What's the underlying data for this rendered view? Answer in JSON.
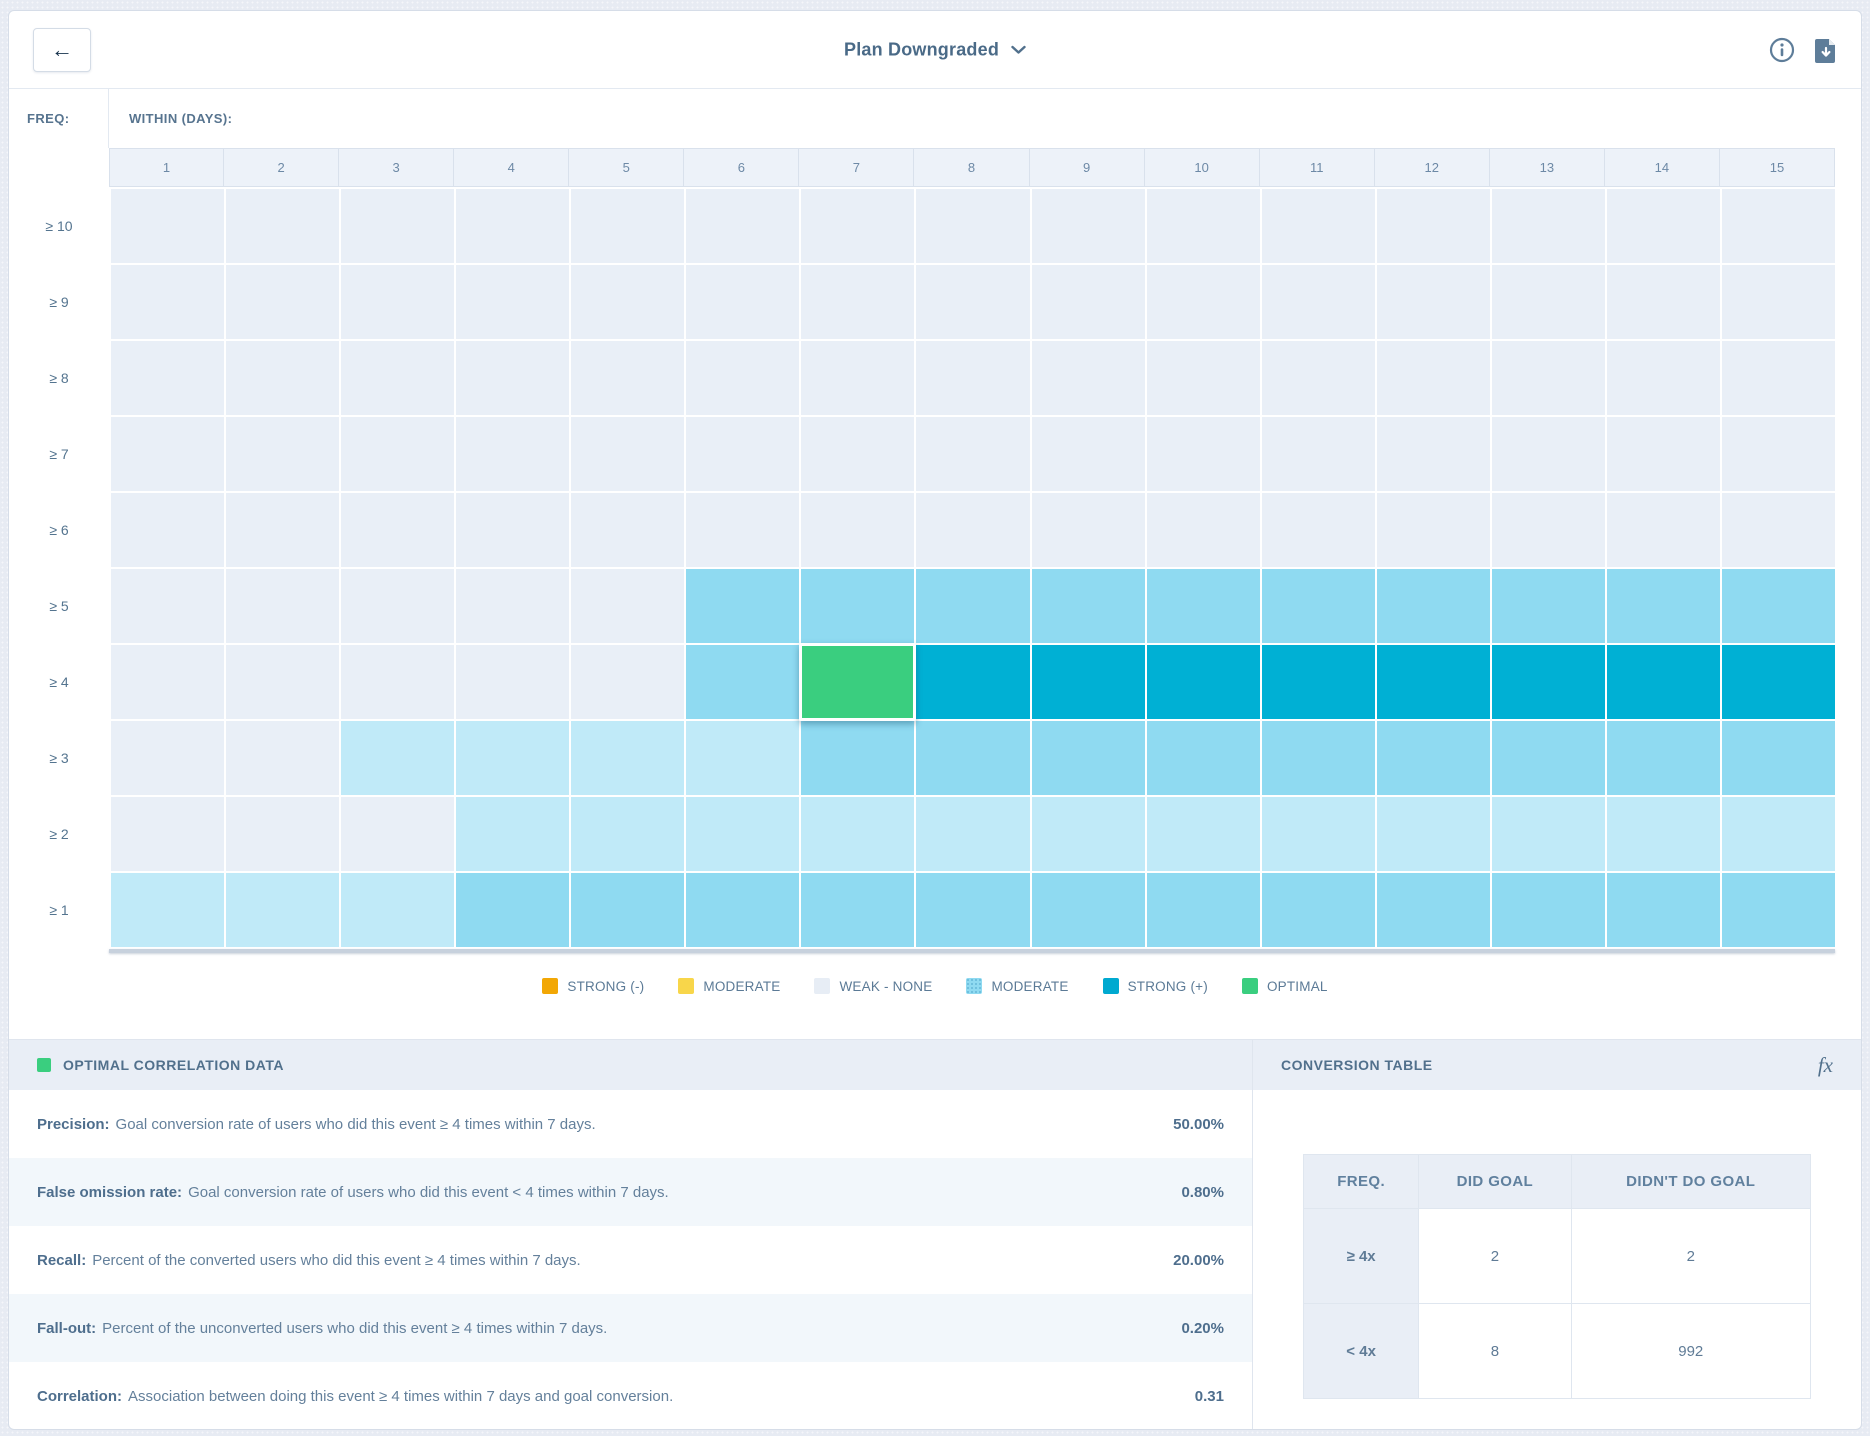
{
  "topbar": {
    "back_label": "←",
    "title": "Plan Downgraded"
  },
  "grid": {
    "freq_label": "FREQ:",
    "within_label": "WITHIN (DAYS):",
    "columns": [
      "1",
      "2",
      "3",
      "4",
      "5",
      "6",
      "7",
      "8",
      "9",
      "10",
      "11",
      "12",
      "13",
      "14",
      "15"
    ],
    "rows": [
      {
        "label": "≥ 10",
        "cells": [
          "w",
          "w",
          "w",
          "w",
          "w",
          "w",
          "w",
          "w",
          "w",
          "w",
          "w",
          "w",
          "w",
          "w",
          "w"
        ]
      },
      {
        "label": "≥ 9",
        "cells": [
          "w",
          "w",
          "w",
          "w",
          "w",
          "w",
          "w",
          "w",
          "w",
          "w",
          "w",
          "w",
          "w",
          "w",
          "w"
        ]
      },
      {
        "label": "≥ 8",
        "cells": [
          "w",
          "w",
          "w",
          "w",
          "w",
          "w",
          "w",
          "w",
          "w",
          "w",
          "w",
          "w",
          "w",
          "w",
          "w"
        ]
      },
      {
        "label": "≥ 7",
        "cells": [
          "w",
          "w",
          "w",
          "w",
          "w",
          "w",
          "w",
          "w",
          "w",
          "w",
          "w",
          "w",
          "w",
          "w",
          "w"
        ]
      },
      {
        "label": "≥ 6",
        "cells": [
          "w",
          "w",
          "w",
          "w",
          "w",
          "w",
          "w",
          "w",
          "w",
          "w",
          "w",
          "w",
          "w",
          "w",
          "w"
        ]
      },
      {
        "label": "≥ 5",
        "cells": [
          "w",
          "w",
          "w",
          "w",
          "w",
          "m",
          "m",
          "m",
          "m",
          "m",
          "m",
          "m",
          "m",
          "m",
          "m"
        ]
      },
      {
        "label": "≥ 4",
        "cells": [
          "w",
          "w",
          "w",
          "w",
          "w",
          "m",
          "o",
          "s",
          "s",
          "s",
          "s",
          "s",
          "s",
          "s",
          "s"
        ]
      },
      {
        "label": "≥ 3",
        "cells": [
          "w",
          "w",
          "p",
          "p",
          "p",
          "p",
          "m",
          "m",
          "m",
          "m",
          "m",
          "m",
          "m",
          "m",
          "m"
        ]
      },
      {
        "label": "≥ 2",
        "cells": [
          "w",
          "w",
          "w",
          "p",
          "p",
          "p",
          "p",
          "p",
          "p",
          "p",
          "p",
          "p",
          "p",
          "p",
          "p"
        ]
      },
      {
        "label": "≥ 1",
        "cells": [
          "p",
          "p",
          "p",
          "m",
          "m",
          "m",
          "m",
          "m",
          "m",
          "m",
          "m",
          "m",
          "m",
          "m",
          "m"
        ]
      }
    ]
  },
  "cell_colors": {
    "w": "#e9eff7",
    "p": "#c0eaf8",
    "m": "#8fdaf1",
    "s": "#00b0d4",
    "o": "#3ace7f"
  },
  "legend": {
    "items": [
      {
        "label": "STRONG (-)",
        "color": "#f2a705",
        "dotted": false
      },
      {
        "label": "MODERATE",
        "color": "#f8d64a",
        "dotted": false
      },
      {
        "label": "WEAK - NONE",
        "color": "#e7edf5",
        "dotted": false
      },
      {
        "label": "MODERATE",
        "color": "#8fdaf1",
        "dotted": true
      },
      {
        "label": "STRONG (+)",
        "color": "#00a9d0",
        "dotted": false
      },
      {
        "label": "OPTIMAL",
        "color": "#3ace7f",
        "dotted": false
      }
    ]
  },
  "optimal_panel": {
    "title": "OPTIMAL CORRELATION DATA",
    "marker_color": "#3ace7f",
    "rows": [
      {
        "label": "Precision:",
        "description": "Goal conversion rate of users who did this event ≥ 4 times within 7 days.",
        "value": "50.00%"
      },
      {
        "label": "False omission rate:",
        "description": "Goal conversion rate of users who did this event < 4 times within 7 days.",
        "value": "0.80%"
      },
      {
        "label": "Recall:",
        "description": "Percent of the converted users who did this event ≥ 4 times within 7 days.",
        "value": "20.00%"
      },
      {
        "label": "Fall-out:",
        "description": "Percent of the unconverted users who did this event ≥ 4 times within 7 days.",
        "value": "0.20%"
      },
      {
        "label": "Correlation:",
        "description": "Association between doing this event ≥ 4 times within 7 days and goal conversion.",
        "value": "0.31"
      }
    ]
  },
  "conversion_panel": {
    "title": "CONVERSION TABLE",
    "fx_label": "fx",
    "table": {
      "headers": [
        "FREQ.",
        "DID GOAL",
        "DIDN'T DO GOAL"
      ],
      "rows": [
        {
          "freq": "≥ 4x",
          "did": "2",
          "didnt": "2"
        },
        {
          "freq": "< 4x",
          "did": "8",
          "didnt": "992"
        }
      ]
    }
  }
}
